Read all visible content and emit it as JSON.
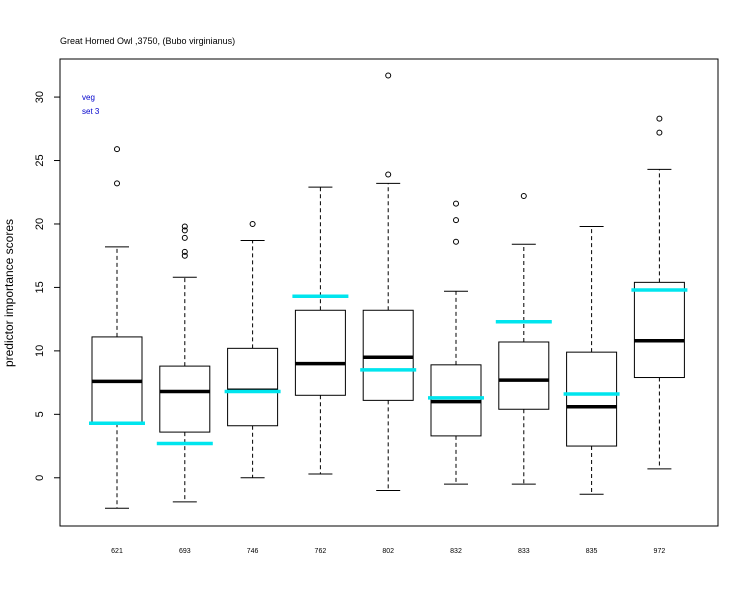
{
  "chart_data": {
    "type": "boxplot",
    "title": "Great Horned Owl ,3750, (Bubo virginianus)",
    "ylabel": "predictor importance scores",
    "xlabel": "",
    "ylim": [
      -3.8,
      33
    ],
    "yticks": [
      0,
      5,
      10,
      15,
      20,
      25,
      30
    ],
    "legend": {
      "placement": "top-left",
      "lines": [
        "veg",
        "set 3"
      ],
      "color": "#0000cc"
    },
    "grid": false,
    "categories": [
      "621",
      "693",
      "746",
      "762",
      "802",
      "832",
      "833",
      "835",
      "972"
    ],
    "boxes": [
      {
        "category": "621",
        "whisker_low": -2.4,
        "q1": 4.3,
        "median": 7.6,
        "q3": 11.1,
        "whisker_high": 18.2,
        "outliers": [
          23.2,
          25.9
        ],
        "marker": 4.3
      },
      {
        "category": "693",
        "whisker_low": -1.9,
        "q1": 3.6,
        "median": 6.8,
        "q3": 8.8,
        "whisker_high": 15.8,
        "outliers": [
          17.5,
          17.8,
          18.9,
          19.5,
          19.8
        ],
        "marker": 2.7
      },
      {
        "category": "746",
        "whisker_low": 0.0,
        "q1": 4.1,
        "median": 6.9,
        "q3": 10.2,
        "whisker_high": 18.7,
        "outliers": [
          20.0
        ],
        "marker": 6.8
      },
      {
        "category": "762",
        "whisker_low": 0.3,
        "q1": 6.5,
        "median": 9.0,
        "q3": 13.2,
        "whisker_high": 22.9,
        "outliers": [],
        "marker": 14.3
      },
      {
        "category": "802",
        "whisker_low": -1.0,
        "q1": 6.1,
        "median": 9.5,
        "q3": 13.2,
        "whisker_high": 23.2,
        "outliers": [
          23.9,
          31.7
        ],
        "marker": 8.5
      },
      {
        "category": "832",
        "whisker_low": -0.5,
        "q1": 3.3,
        "median": 6.0,
        "q3": 8.9,
        "whisker_high": 14.7,
        "outliers": [
          18.6,
          20.3,
          21.6
        ],
        "marker": 6.3
      },
      {
        "category": "833",
        "whisker_low": -0.5,
        "q1": 5.4,
        "median": 7.7,
        "q3": 10.7,
        "whisker_high": 18.4,
        "outliers": [
          22.2
        ],
        "marker": 12.3
      },
      {
        "category": "835",
        "whisker_low": -1.3,
        "q1": 2.5,
        "median": 5.6,
        "q3": 9.9,
        "whisker_high": 19.8,
        "outliers": [],
        "marker": 6.6
      },
      {
        "category": "972",
        "whisker_low": 0.7,
        "q1": 7.9,
        "median": 10.8,
        "q3": 15.4,
        "whisker_high": 24.3,
        "outliers": [
          27.2,
          28.3
        ],
        "marker": 14.8
      }
    ],
    "marker_color": "#00e5ee",
    "box_color": "#000000"
  }
}
